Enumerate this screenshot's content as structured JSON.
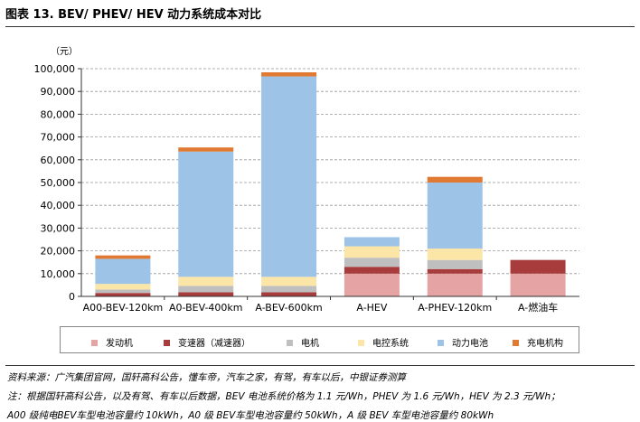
{
  "title": "图表 13. BEV/ PHEV/ HEV 动力系统成本对比",
  "unit_label": "（元）",
  "chart_data": {
    "type": "bar",
    "stacked": true,
    "categories": [
      "A00-BEV-120km",
      "A0-BEV-400km",
      "A-BEV-600km",
      "A-HEV",
      "A-PHEV-120km",
      "A-燃油车"
    ],
    "series": [
      {
        "name": "发动机",
        "color": "#e6a3a3",
        "values": [
          0,
          0,
          0,
          10000,
          10000,
          10000
        ]
      },
      {
        "name": "变速器（减速器）",
        "color": "#a83c3c",
        "values": [
          1500,
          1800,
          1800,
          3000,
          2000,
          6000
        ]
      },
      {
        "name": "电机",
        "color": "#bfbfbf",
        "values": [
          1500,
          2800,
          2800,
          4000,
          4000,
          0
        ]
      },
      {
        "name": "电控系统",
        "color": "#fbe6a8",
        "values": [
          2500,
          4000,
          4000,
          5000,
          5000,
          0
        ]
      },
      {
        "name": "动力电池",
        "color": "#9dc3e6",
        "values": [
          11000,
          55000,
          88000,
          4000,
          29000,
          0
        ]
      },
      {
        "name": "充电机构",
        "color": "#e07a32",
        "values": [
          1500,
          1800,
          1800,
          0,
          2500,
          0
        ]
      }
    ],
    "yticks": [
      "0",
      "10,000",
      "20,000",
      "30,000",
      "40,000",
      "50,000",
      "60,000",
      "70,000",
      "80,000",
      "90,000",
      "100,000"
    ],
    "ylim": [
      0,
      100000
    ],
    "grid": true,
    "legend_position": "bottom"
  },
  "notes": [
    "资料来源：广汽集团官网，国轩高科公告，懂车帝，汽车之家，有驾，有车以后，中银证券测算",
    "注：根据国轩高科公告，以及有驾、有车以后数据，BEV 电池系统价格为 1.1 元/Wh，PHEV 为 1.6 元/Wh，HEV 为 2.3 元/Wh；",
    "    A00 级纯电BEV车型电池容量约 10kWh，A0 级 BEV车型电池容量约 50kWh，A 级 BEV 车型电池容量约 80kWh"
  ]
}
